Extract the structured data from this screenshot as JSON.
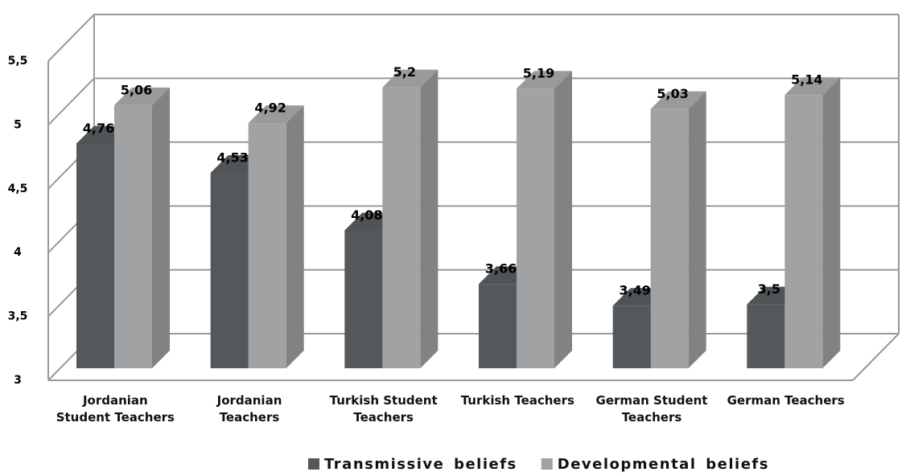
{
  "chart_data": {
    "type": "bar3d",
    "categories": [
      "Jordanian Student Teachers",
      "Jordanian Teachers",
      "Turkish Student Teachers",
      "Turkish Teachers",
      "German Student Teachers",
      "German Teachers"
    ],
    "series": [
      {
        "name": "Transmissive beliefs",
        "color": "#54585a",
        "values": [
          4.76,
          4.53,
          4.08,
          3.66,
          3.49,
          3.5
        ],
        "value_labels": [
          "4,76",
          "4,53",
          "4,08",
          "3,66",
          "3,49",
          "3,5"
        ]
      },
      {
        "name": "Developmental beliefs",
        "color": "#a0a2a4",
        "values": [
          5.06,
          4.92,
          5.2,
          5.19,
          5.03,
          5.14
        ],
        "value_labels": [
          "5,06",
          "4,92",
          "5,2",
          "5,19",
          "5,03",
          "5,14"
        ]
      }
    ],
    "ylim": [
      3,
      5.5
    ],
    "yticks": [
      3,
      {
        "value": 3.5,
        "label": "3,5"
      },
      4,
      {
        "value": 4.5,
        "label": "4,5"
      },
      5,
      {
        "value": 5.5,
        "label": "5,5"
      }
    ],
    "grid": true,
    "legend": "bottom"
  }
}
